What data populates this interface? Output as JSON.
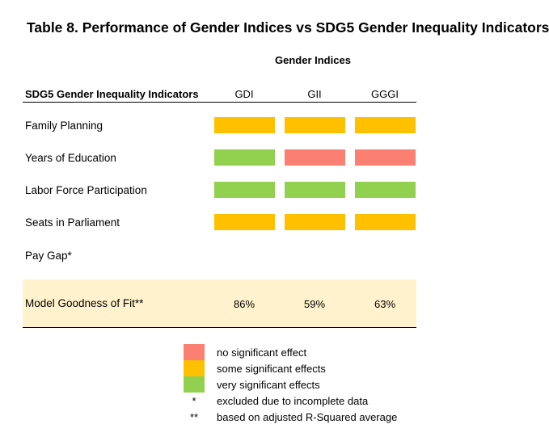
{
  "title": "Table 8.  Performance of Gender Indices vs SDG5 Gender Inequality Indicators",
  "group_header": "Gender Indices",
  "indicator_header": "SDG5 Gender Inequality Indicators",
  "columns": [
    "GDI",
    "GII",
    "GGGI"
  ],
  "colors": {
    "none": "#fb8072",
    "some": "#ffc000",
    "very": "#92d050",
    "fit_band": "#fff2cc"
  },
  "rows": [
    {
      "label": "Family Planning",
      "cells": [
        "some",
        "some",
        "some"
      ]
    },
    {
      "label": "Years of Education",
      "cells": [
        "very",
        "none",
        "none"
      ]
    },
    {
      "label": "Labor Force Participation",
      "cells": [
        "very",
        "very",
        "very"
      ]
    },
    {
      "label": "Seats in Parliament",
      "cells": [
        "some",
        "some",
        "some"
      ]
    },
    {
      "label": "Pay Gap*",
      "cells": [
        null,
        null,
        null
      ]
    }
  ],
  "fit": {
    "label": "Model Goodness of Fit**",
    "values": [
      "86%",
      "59%",
      "63%"
    ]
  },
  "legend": [
    {
      "kind": "none",
      "text": "no significant effect"
    },
    {
      "kind": "some",
      "text": "some significant effects"
    },
    {
      "kind": "very",
      "text": "very significant effects"
    },
    {
      "symbol": "*",
      "text": "excluded due to incomplete data"
    },
    {
      "symbol": "**",
      "text": "based on adjusted R-Squared average"
    }
  ]
}
